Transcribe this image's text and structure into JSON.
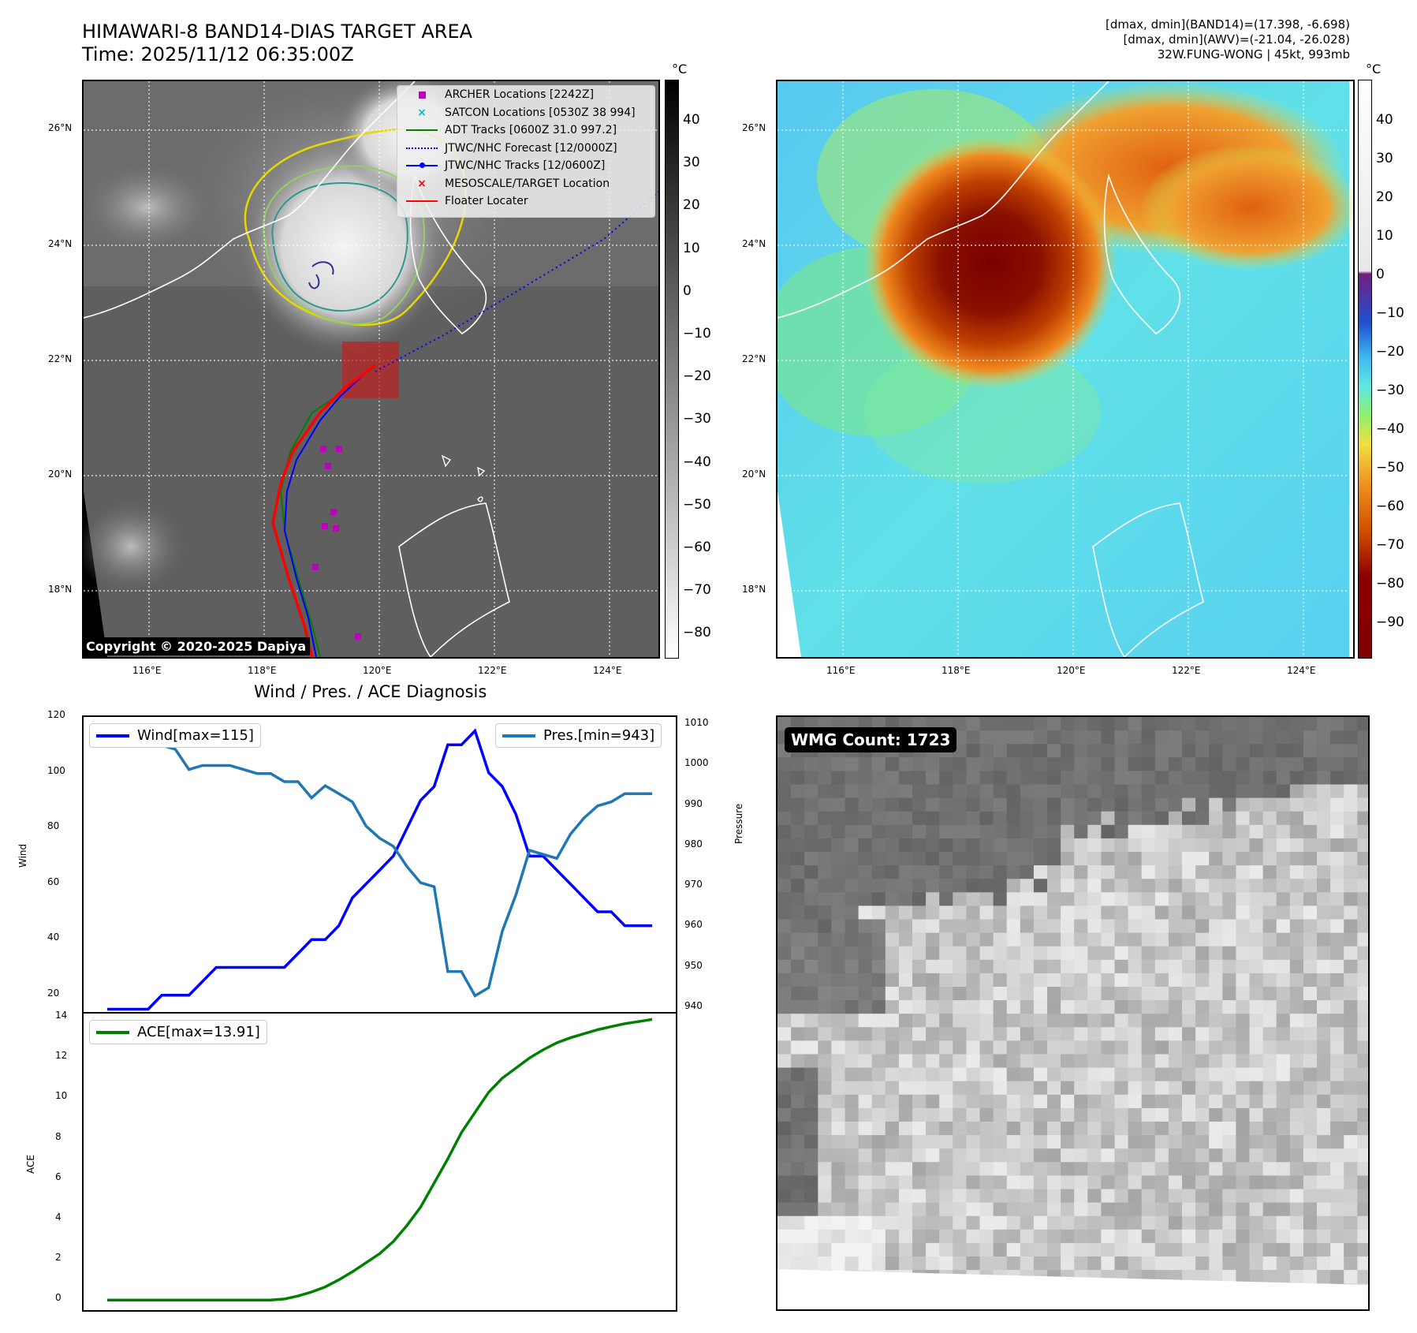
{
  "header": {
    "title_line1": "HIMAWARI-8 BAND14-DIAS TARGET AREA",
    "title_line2": "Time: 2025/11/12 06:35:00Z",
    "right_line1": "[dmax, dmin](BAND14)=(17.398, -6.698)",
    "right_line2": "[dmax, dmin](AWV)=(-21.04, -26.028)",
    "right_line3": "32W.FUNG-WONG | 45kt, 993mb"
  },
  "map_axes": {
    "lat_labels": [
      "26°N",
      "24°N",
      "22°N",
      "20°N",
      "18°N"
    ],
    "lon_labels": [
      "116°E",
      "118°E",
      "120°E",
      "122°E",
      "124°E"
    ]
  },
  "colorbar_left": {
    "unit": "°C",
    "ticks": [
      "40",
      "30",
      "20",
      "10",
      "0",
      "−10",
      "−20",
      "−30",
      "−40",
      "−50",
      "−60",
      "−70",
      "−80"
    ]
  },
  "colorbar_right": {
    "unit": "°C",
    "ticks": [
      "40",
      "30",
      "20",
      "10",
      "0",
      "−10",
      "−20",
      "−30",
      "−40",
      "−50",
      "−60",
      "−70",
      "−80",
      "−90"
    ]
  },
  "legend": [
    {
      "label": "ARCHER Locations [2242Z]",
      "symbol": "square",
      "color": "#c000c0"
    },
    {
      "label": "SATCON Locations [0530Z 38 994]",
      "symbol": "x",
      "color": "#00b8c8"
    },
    {
      "label": "ADT Tracks [0600Z 31.0 997.2]",
      "symbol": "line",
      "color": "#008000"
    },
    {
      "label": "JTWC/NHC Forecast [12/0000Z]",
      "symbol": "dotted",
      "color": "#0000ff"
    },
    {
      "label": "JTWC/NHC Tracks [12/0600Z]",
      "symbol": "line-dot",
      "color": "#0000ff"
    },
    {
      "label": "MESOSCALE/TARGET Location",
      "symbol": "x",
      "color": "#ff0000"
    },
    {
      "label": "Floater Locater",
      "symbol": "line",
      "color": "#ff0000"
    }
  ],
  "copyright": "Copyright © 2020-2025 Dapiya",
  "diag_title": "Wind / Pres. / ACE Diagnosis",
  "wmg_label": "WMG Count: 1723",
  "chart_data": [
    {
      "type": "line",
      "title": "Wind / Pres. / ACE Diagnosis",
      "ylabel": "Wind",
      "y2label": "Pressure",
      "ylim": [
        14,
        120
      ],
      "y2lim": [
        939,
        1012
      ],
      "yticks": [
        20,
        40,
        60,
        80,
        100,
        120
      ],
      "y2ticks": [
        940,
        950,
        960,
        970,
        980,
        990,
        1000,
        1010
      ],
      "x": [
        0,
        1,
        2,
        3,
        4,
        5,
        6,
        7,
        8,
        9,
        10,
        11,
        12,
        13,
        14,
        15,
        16,
        17,
        18,
        19,
        20,
        21,
        22,
        23,
        24,
        25,
        26,
        27,
        28,
        29,
        30,
        31,
        32,
        33,
        34,
        35,
        36,
        37,
        38,
        39,
        40
      ],
      "series": [
        {
          "name": "Wind[max=115]",
          "axis": "left",
          "color": "#0000ff",
          "values": [
            15,
            15,
            15,
            15,
            20,
            20,
            20,
            25,
            30,
            30,
            30,
            30,
            30,
            30,
            35,
            40,
            40,
            45,
            55,
            60,
            65,
            70,
            80,
            90,
            95,
            110,
            110,
            115,
            100,
            95,
            85,
            70,
            70,
            65,
            60,
            55,
            50,
            50,
            45,
            45,
            45
          ]
        },
        {
          "name": "Pres.[min=943]",
          "axis": "right",
          "color": "#1f77b4",
          "values": [
            1009,
            1006,
            1006,
            1006,
            1005,
            1004,
            999,
            1000,
            1000,
            1000,
            999,
            998,
            998,
            996,
            996,
            992,
            995,
            993,
            991,
            985,
            982,
            980,
            975,
            971,
            970,
            949,
            949,
            943,
            945,
            959,
            968,
            979,
            978,
            977,
            983,
            987,
            990,
            991,
            993,
            993,
            993
          ]
        }
      ]
    },
    {
      "type": "line",
      "ylabel": "ACE",
      "ylim": [
        -0.5,
        14.2
      ],
      "yticks": [
        0,
        2,
        4,
        6,
        8,
        10,
        12,
        14
      ],
      "x": [
        0,
        1,
        2,
        3,
        4,
        5,
        6,
        7,
        8,
        9,
        10,
        11,
        12,
        13,
        14,
        15,
        16,
        17,
        18,
        19,
        20,
        21,
        22,
        23,
        24,
        25,
        26,
        27,
        28,
        29,
        30,
        31,
        32,
        33,
        34,
        35,
        36,
        37,
        38,
        39,
        40
      ],
      "series": [
        {
          "name": "ACE[max=13.91]",
          "color": "#008000",
          "values": [
            0,
            0,
            0,
            0,
            0,
            0,
            0,
            0,
            0,
            0,
            0,
            0,
            0,
            0.05,
            0.2,
            0.4,
            0.65,
            1.0,
            1.4,
            1.85,
            2.3,
            2.9,
            3.7,
            4.6,
            5.8,
            7.0,
            8.3,
            9.3,
            10.3,
            11.0,
            11.5,
            12.0,
            12.4,
            12.75,
            13.0,
            13.2,
            13.4,
            13.55,
            13.7,
            13.8,
            13.91
          ]
        }
      ]
    }
  ]
}
